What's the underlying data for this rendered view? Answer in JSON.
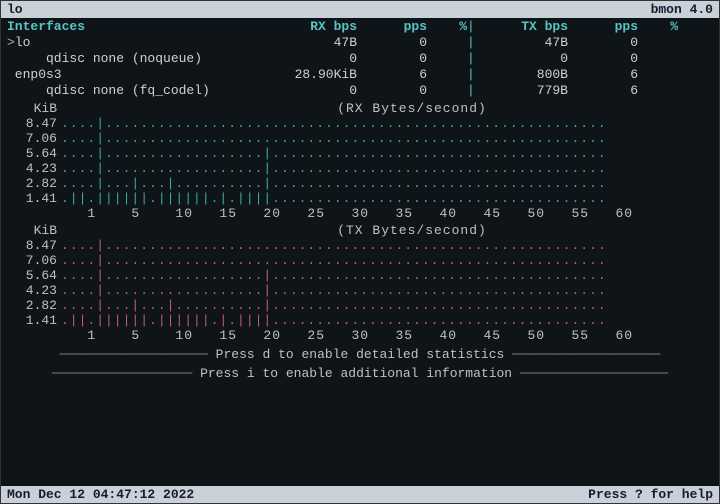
{
  "app": {
    "iface": "lo",
    "title": "bmon 4.0"
  },
  "columns": {
    "iface": "Interfaces",
    "rxbps": "RX bps",
    "rxpps": "pps",
    "rxpct": "%",
    "txbps": "TX bps",
    "txpps": "pps",
    "txpct": "%"
  },
  "rows": [
    {
      "name": "lo",
      "indent": 0,
      "selected": true,
      "rxbps": "47B",
      "rxpps": "0",
      "rxpct": "",
      "txbps": "47B",
      "txpps": "0",
      "txpct": ""
    },
    {
      "name": "qdisc none (noqueue)",
      "indent": 2,
      "selected": false,
      "rxbps": "0",
      "rxpps": "0",
      "rxpct": "",
      "txbps": "0",
      "txpps": "0",
      "txpct": ""
    },
    {
      "name": "enp0s3",
      "indent": 0,
      "selected": false,
      "rxbps": "28.90KiB",
      "rxpps": "6",
      "rxpct": "",
      "txbps": "800B",
      "txpps": "6",
      "txpct": ""
    },
    {
      "name": "qdisc none (fq_codel)",
      "indent": 2,
      "selected": false,
      "rxbps": "0",
      "rxpps": "0",
      "rxpct": "",
      "txbps": "779B",
      "txpps": "6",
      "txpct": ""
    }
  ],
  "chart": {
    "unit": "KiB",
    "rx_title": "(RX Bytes/second)",
    "tx_title": "(TX Bytes/second)",
    "ylabels": [
      "8.47",
      "7.06",
      "5.64",
      "4.23",
      "2.82",
      "1.41"
    ],
    "xlabels": "   1    5    10   15   20   25   30   35   40   45   50   55   60",
    "rx_rows": [
      "....|.........................................................",
      "....|.........................................................",
      "....|..................|......................................",
      "....|..................|......................................",
      "....|...|...|..........|......................................",
      ".||.||||||.||||||.|.||||......................................"
    ],
    "tx_rows": [
      "....|.........................................................",
      "....|.........................................................",
      "....|..................|......................................",
      "....|..................|......................................",
      "....|...|...|..........|......................................",
      ".||.||||||.||||||.|.||||......................................"
    ],
    "rx_color": "#3fa89c",
    "tx_color": "#c55a6a"
  },
  "hints": {
    "d": "Press d to enable detailed statistics",
    "i": "Press i to enable additional information"
  },
  "footer": {
    "time": "Mon Dec 12 04:47:12 2022",
    "help": "Press ? for help"
  }
}
